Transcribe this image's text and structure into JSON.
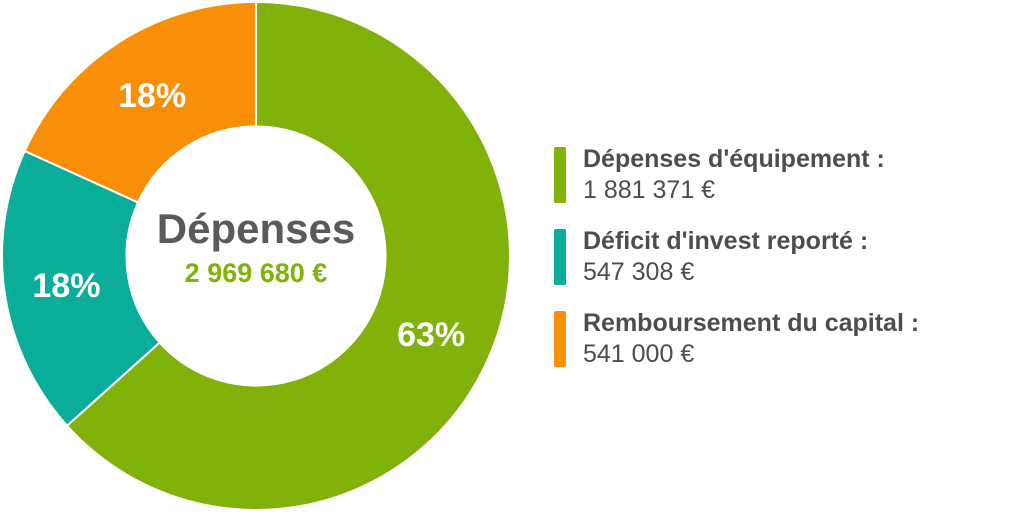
{
  "chart_data": {
    "type": "pie",
    "title": "Dépenses",
    "total": "2 969 680 €",
    "slices": [
      {
        "name": "Dépenses d'équipement :",
        "value": 1881371,
        "value_label": "1 881 371 €",
        "pct_label": "63%",
        "color": "#80b20a"
      },
      {
        "name": "Déficit d'invest reporté :",
        "value": 547308,
        "value_label": "547 308 €",
        "pct_label": "18%",
        "color": "#0aac9a"
      },
      {
        "name": "Remboursement du capital :",
        "value": 541000,
        "value_label": "541 000 €",
        "pct_label": "18%",
        "color": "#f98e07"
      }
    ],
    "legend_position": "right",
    "inner_radius_ratio": 0.51
  },
  "colors": {
    "title": "#5a5a5a",
    "total": "#80b20a",
    "legend_text": "#4d4d4d"
  }
}
